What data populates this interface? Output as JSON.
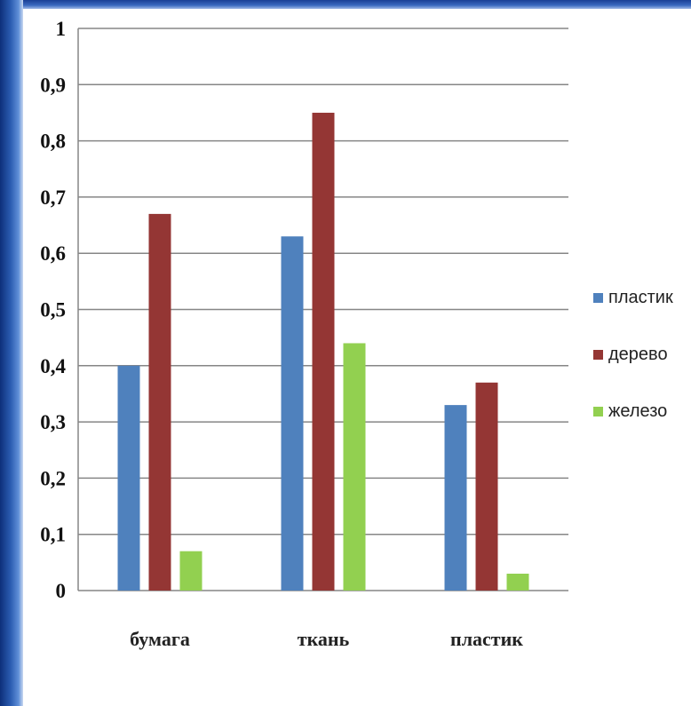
{
  "chart_data": {
    "type": "bar",
    "categories": [
      "бумага",
      "ткань",
      "пластик"
    ],
    "series": [
      {
        "name": "пластик",
        "color": "#4f81bd",
        "values": [
          0.4,
          0.63,
          0.33
        ]
      },
      {
        "name": "дерево",
        "color": "#943634",
        "values": [
          0.67,
          0.85,
          0.37
        ]
      },
      {
        "name": "железо",
        "color": "#92d050",
        "values": [
          0.07,
          0.44,
          0.03
        ]
      }
    ],
    "yticks": [
      "0",
      "0,1",
      "0,2",
      "0,3",
      "0,4",
      "0,5",
      "0,6",
      "0,7",
      "0,8",
      "0,9",
      "1"
    ],
    "ylim": [
      0,
      1
    ],
    "grid": true,
    "legend_position": "right"
  }
}
